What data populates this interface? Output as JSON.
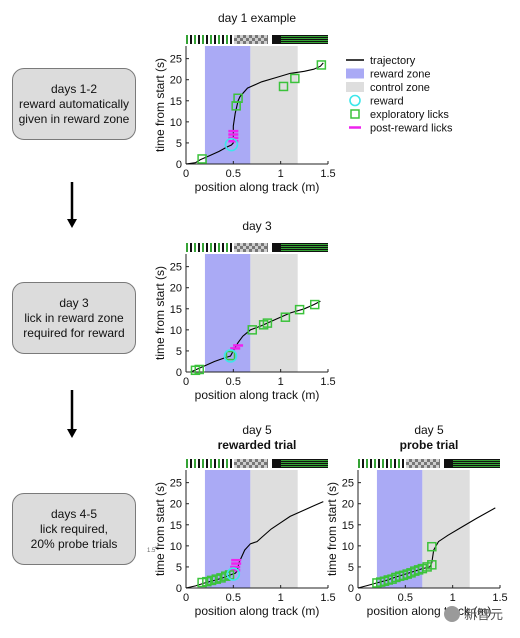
{
  "stages": [
    {
      "lines": [
        "days 1-2",
        "reward automatically",
        "given in reward zone"
      ]
    },
    {
      "lines": [
        "day 3",
        "lick in reward zone",
        "required for reward"
      ]
    },
    {
      "lines": [
        "days 4-5",
        "lick required,",
        "20% probe trials"
      ]
    }
  ],
  "small_tick": "1.5",
  "watermark": "新智元",
  "legend": {
    "items": [
      {
        "label": "trajectory",
        "kind": "line",
        "color": "#000000"
      },
      {
        "label": "reward zone",
        "kind": "patch",
        "color": "#aaaaf5"
      },
      {
        "label": "control zone",
        "kind": "patch",
        "color": "#dedede"
      },
      {
        "label": "reward",
        "kind": "circle",
        "color": "#3de6ea"
      },
      {
        "label": "exploratory licks",
        "kind": "square",
        "color": "#3bc23b"
      },
      {
        "label": "post-reward licks",
        "kind": "dash",
        "color": "#ee22ee"
      }
    ]
  },
  "colors": {
    "trajectory": "#000000",
    "reward_zone": "#aaaaf5",
    "control_zone": "#dedede",
    "reward": "#3de6ea",
    "lick": "#3bc23b",
    "post_reward": "#ee22ee",
    "stripe_green": "#35a235",
    "stripe_dark": "#111111"
  },
  "chart_data": [
    {
      "type": "line",
      "title": "day 1 example",
      "subtitle": "",
      "xlabel": "position along track (m)",
      "ylabel": "time from start (s)",
      "xlim": [
        0,
        1.5
      ],
      "ylim": [
        0,
        28
      ],
      "xticks": [
        0,
        0.5,
        1,
        1.5
      ],
      "xtick_labels": [
        "0",
        "0.5",
        "1",
        "1.5"
      ],
      "yticks": [
        0,
        5,
        10,
        15,
        20,
        25
      ],
      "ytick_labels": [
        "0",
        "5",
        "10",
        "15",
        "20",
        "25"
      ],
      "reward_zone": [
        0.2,
        0.68
      ],
      "control_zone": [
        0.68,
        1.18
      ],
      "trajectory": [
        [
          0,
          0
        ],
        [
          0.1,
          0.3
        ],
        [
          0.15,
          1
        ],
        [
          0.25,
          2
        ],
        [
          0.35,
          3
        ],
        [
          0.43,
          4
        ],
        [
          0.48,
          4.5
        ],
        [
          0.5,
          5
        ],
        [
          0.5,
          9
        ],
        [
          0.52,
          12
        ],
        [
          0.55,
          15
        ],
        [
          0.57,
          16
        ],
        [
          0.65,
          18
        ],
        [
          0.8,
          19.5
        ],
        [
          0.95,
          20.5
        ],
        [
          1.1,
          21.5
        ],
        [
          1.25,
          22
        ],
        [
          1.35,
          22.5
        ],
        [
          1.42,
          23.2
        ],
        [
          1.45,
          24
        ]
      ],
      "reward": [
        [
          0.48,
          4.6
        ]
      ],
      "exploratory_licks": [
        [
          0.17,
          1.2
        ],
        [
          0.53,
          13.8
        ],
        [
          0.55,
          15.6
        ],
        [
          1.03,
          18.4
        ],
        [
          1.15,
          20.3
        ],
        [
          1.43,
          23.5
        ]
      ],
      "post_reward_licks": [
        [
          0.5,
          5.4
        ],
        [
          0.5,
          6.2
        ],
        [
          0.5,
          7.0
        ],
        [
          0.5,
          7.8
        ]
      ]
    },
    {
      "type": "line",
      "title": "day 3",
      "subtitle": "",
      "xlabel": "position along track (m)",
      "ylabel": "time from start (s)",
      "xlim": [
        0,
        1.5
      ],
      "ylim": [
        0,
        28
      ],
      "xticks": [
        0,
        0.5,
        1,
        1.5
      ],
      "xtick_labels": [
        "0",
        "0.5",
        "1",
        "1.5"
      ],
      "yticks": [
        0,
        5,
        10,
        15,
        20,
        25
      ],
      "ytick_labels": [
        "0",
        "5",
        "10",
        "15",
        "20",
        "25"
      ],
      "reward_zone": [
        0.2,
        0.68
      ],
      "control_zone": [
        0.68,
        1.18
      ],
      "trajectory": [
        [
          0.05,
          0
        ],
        [
          0.1,
          0.5
        ],
        [
          0.2,
          1.5
        ],
        [
          0.3,
          2.5
        ],
        [
          0.4,
          3.3
        ],
        [
          0.47,
          3.8
        ],
        [
          0.5,
          5
        ],
        [
          0.55,
          7
        ],
        [
          0.6,
          8.5
        ],
        [
          0.68,
          10
        ],
        [
          0.8,
          11
        ],
        [
          0.95,
          12.5
        ],
        [
          1.1,
          14
        ],
        [
          1.25,
          15
        ],
        [
          1.35,
          16
        ],
        [
          1.42,
          16.8
        ]
      ],
      "reward": [
        [
          0.47,
          3.8
        ]
      ],
      "exploratory_licks": [
        [
          0.1,
          0.4
        ],
        [
          0.14,
          0.6
        ],
        [
          0.47,
          3.9
        ],
        [
          0.7,
          10
        ],
        [
          0.82,
          11.2
        ],
        [
          0.86,
          11.6
        ],
        [
          1.05,
          13
        ],
        [
          1.2,
          14.8
        ],
        [
          1.36,
          16
        ]
      ],
      "post_reward_licks": [
        [
          0.52,
          5.6
        ],
        [
          0.55,
          6.3
        ]
      ]
    },
    {
      "type": "line",
      "title": "day 5",
      "subtitle": "rewarded trial",
      "xlabel": "position along track (m)",
      "ylabel": "time from start (s)",
      "xlim": [
        0,
        1.5
      ],
      "ylim": [
        0,
        28
      ],
      "xticks": [
        0,
        0.5,
        1,
        1.5
      ],
      "xtick_labels": [
        "0",
        "0.5",
        "1",
        "1.5"
      ],
      "yticks": [
        0,
        5,
        10,
        15,
        20,
        25
      ],
      "ytick_labels": [
        "0",
        "5",
        "10",
        "15",
        "20",
        "25"
      ],
      "reward_zone": [
        0.2,
        0.68
      ],
      "control_zone": [
        0.68,
        1.18
      ],
      "trajectory": [
        [
          0,
          0
        ],
        [
          0.1,
          0.5
        ],
        [
          0.2,
          1.2
        ],
        [
          0.3,
          1.8
        ],
        [
          0.4,
          2.5
        ],
        [
          0.48,
          3.2
        ],
        [
          0.52,
          3.5
        ],
        [
          0.54,
          4
        ],
        [
          0.56,
          6
        ],
        [
          0.62,
          9
        ],
        [
          0.68,
          10.5
        ],
        [
          0.75,
          11
        ],
        [
          0.8,
          12
        ],
        [
          0.9,
          14
        ],
        [
          1.0,
          15.5
        ],
        [
          1.1,
          17
        ],
        [
          1.2,
          18
        ],
        [
          1.35,
          19.5
        ],
        [
          1.45,
          20.5
        ]
      ],
      "reward": [
        [
          0.5,
          3.3
        ]
      ],
      "exploratory_licks": [
        [
          0.17,
          1.3
        ],
        [
          0.22,
          1.5
        ],
        [
          0.27,
          1.8
        ],
        [
          0.32,
          2.1
        ],
        [
          0.37,
          2.4
        ],
        [
          0.42,
          2.8
        ],
        [
          0.46,
          3.1
        ]
      ],
      "post_reward_licks": [
        [
          0.52,
          4.2
        ],
        [
          0.52,
          5.0
        ],
        [
          0.53,
          5.8
        ],
        [
          0.53,
          6.6
        ]
      ]
    },
    {
      "type": "line",
      "title": "day 5",
      "subtitle": "probe trial",
      "xlabel": "position along track (m)",
      "ylabel": "time from start (s)",
      "xlim": [
        0,
        1.5
      ],
      "ylim": [
        0,
        28
      ],
      "xticks": [
        0,
        0.5,
        1,
        1.5
      ],
      "xtick_labels": [
        "0",
        "0.5",
        "1",
        "1.5"
      ],
      "yticks": [
        0,
        5,
        10,
        15,
        20,
        25
      ],
      "ytick_labels": [
        "0",
        "5",
        "10",
        "15",
        "20",
        "25"
      ],
      "reward_zone": [
        0.2,
        0.68
      ],
      "control_zone": [
        0.68,
        1.18
      ],
      "trajectory": [
        [
          0,
          0
        ],
        [
          0.1,
          0.6
        ],
        [
          0.2,
          1.2
        ],
        [
          0.3,
          1.8
        ],
        [
          0.4,
          2.6
        ],
        [
          0.5,
          3.3
        ],
        [
          0.6,
          4
        ],
        [
          0.68,
          4.6
        ],
        [
          0.76,
          5
        ],
        [
          0.78,
          6
        ],
        [
          0.8,
          9
        ],
        [
          0.85,
          11
        ],
        [
          0.95,
          12.5
        ],
        [
          1.1,
          14.5
        ],
        [
          1.25,
          16.5
        ],
        [
          1.45,
          19
        ]
      ],
      "reward": [],
      "exploratory_licks": [
        [
          0.2,
          1.2
        ],
        [
          0.24,
          1.4
        ],
        [
          0.28,
          1.6
        ],
        [
          0.32,
          1.9
        ],
        [
          0.36,
          2.1
        ],
        [
          0.4,
          2.5
        ],
        [
          0.44,
          2.8
        ],
        [
          0.48,
          3.0
        ],
        [
          0.52,
          3.3
        ],
        [
          0.56,
          3.6
        ],
        [
          0.6,
          4.0
        ],
        [
          0.64,
          4.3
        ],
        [
          0.68,
          4.6
        ],
        [
          0.73,
          5.0
        ],
        [
          0.78,
          5.5
        ],
        [
          0.78,
          9.8
        ]
      ],
      "post_reward_licks": []
    }
  ]
}
